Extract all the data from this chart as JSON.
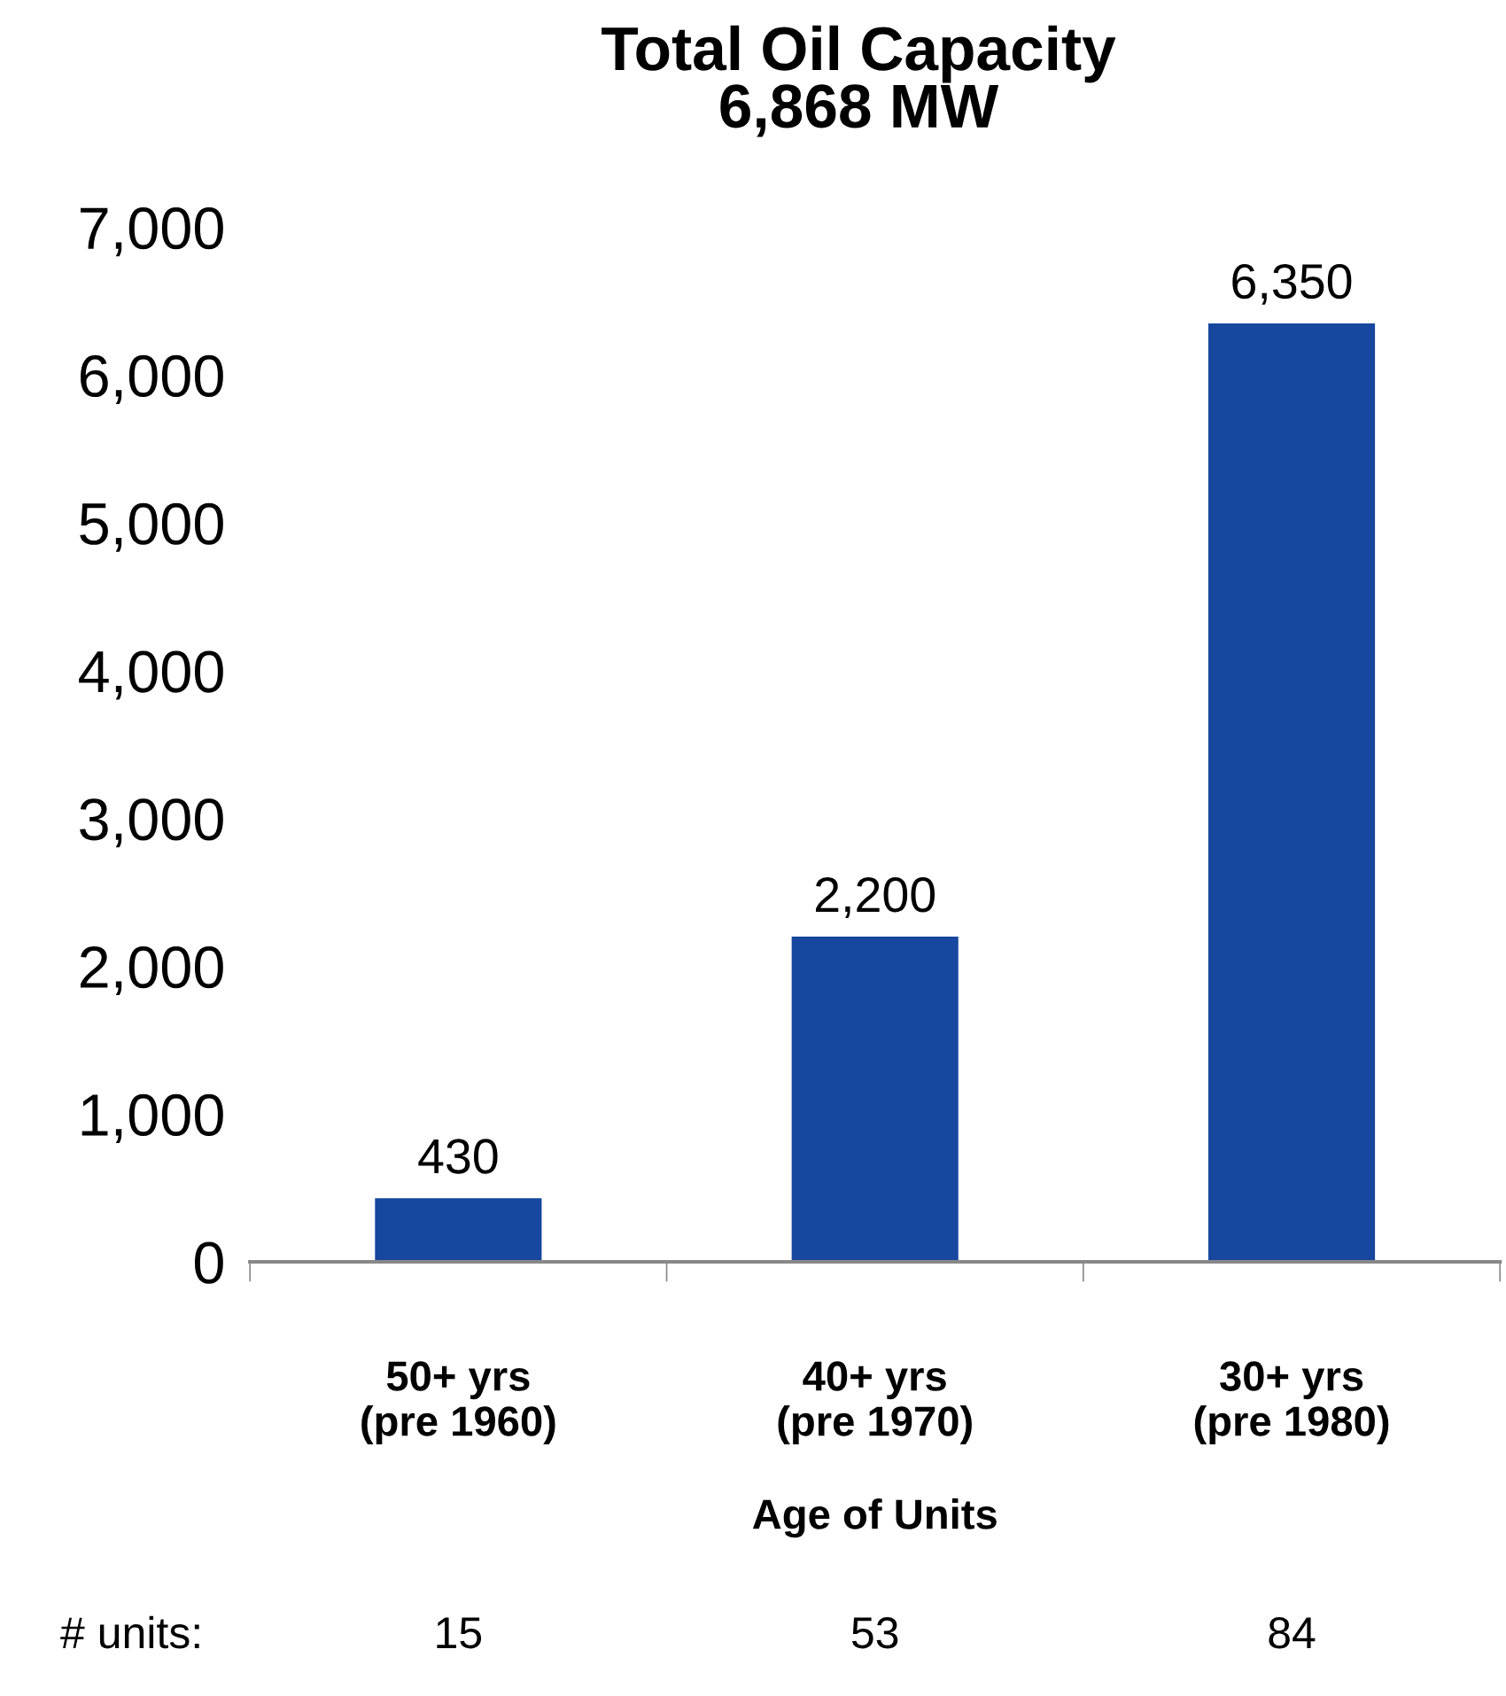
{
  "chart_data": {
    "type": "bar",
    "title": "Total Oil Capacity\n6,868 MW",
    "xlabel": "Age of Units",
    "categories": [
      "50+ yrs\n(pre 1960)",
      "40+ yrs\n(pre 1970)",
      "30+ yrs\n(pre 1980)"
    ],
    "values": [
      430,
      2200,
      6350
    ],
    "value_labels": [
      "430",
      "2,200",
      "6,350"
    ],
    "color": "#17479e",
    "ylim": [
      0,
      7000
    ],
    "yticks": [
      {
        "value": 0,
        "label": "0"
      },
      {
        "value": 1000,
        "label": "1,000"
      },
      {
        "value": 2000,
        "label": "2,000"
      },
      {
        "value": 3000,
        "label": "3,000"
      },
      {
        "value": 4000,
        "label": "4,000"
      },
      {
        "value": 5000,
        "label": "5,000"
      },
      {
        "value": 6000,
        "label": "6,000"
      },
      {
        "value": 7000,
        "label": "7,000"
      }
    ],
    "grid": false,
    "legend": false,
    "annotations": [
      "# units:",
      "15",
      "53",
      "84"
    ]
  }
}
